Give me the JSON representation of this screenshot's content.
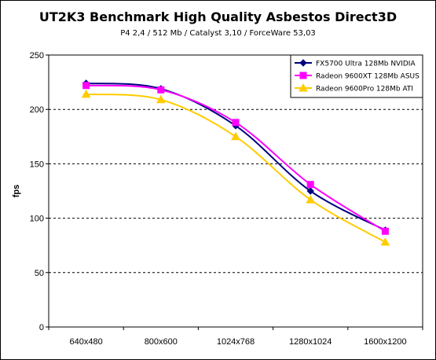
{
  "chart_data": {
    "type": "line",
    "title": "UT2K3 Benchmark High Quality Asbestos Direct3D",
    "subtitle": "P4 2,4 / 512 Mb / Catalyst 3,10 / ForceWare 53,03",
    "xlabel": "",
    "ylabel": "fps",
    "categories": [
      "640x480",
      "800x600",
      "1024x768",
      "1280x1024",
      "1600x1200"
    ],
    "ylim": [
      0,
      250
    ],
    "yticks": [
      0,
      50,
      100,
      150,
      200,
      250
    ],
    "grid": "horizontal dashed",
    "legend_position": "top-right",
    "series": [
      {
        "name": "FX5700 Ultra 128Mb NVIDIA",
        "values": [
          224,
          219,
          185,
          125,
          89
        ],
        "color": "#000080",
        "marker": "diamond"
      },
      {
        "name": "Radeon 9600XT 128Mb ASUS",
        "values": [
          222,
          218,
          188,
          131,
          88
        ],
        "color": "#ff00ff",
        "marker": "square"
      },
      {
        "name": "Radeon 9600Pro 128Mb ATI",
        "values": [
          214,
          209,
          175,
          117,
          78
        ],
        "color": "#ffcc00",
        "marker": "triangle"
      }
    ]
  }
}
